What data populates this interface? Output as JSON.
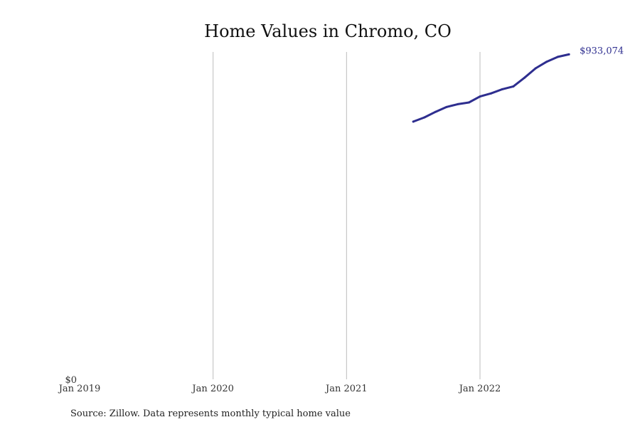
{
  "chart_data": {
    "type": "line",
    "title": "Home Values in Chromo, CO",
    "xlabel": "",
    "ylabel": "",
    "x_tick_labels": [
      "Jan 2019",
      "Jan 2020",
      "Jan 2021",
      "Jan 2022"
    ],
    "x_ticks": [
      "2019-01",
      "2020-01",
      "2021-01",
      "2022-01"
    ],
    "xlim": [
      "2019-01",
      "2022-12"
    ],
    "y_tick_labels": [
      "$0"
    ],
    "ylim": [
      0,
      940000
    ],
    "grid": "vertical",
    "line_color": "#2e2e8f",
    "grid_color": "#bdbdbd",
    "end_label": "$933,074",
    "series": [
      {
        "x": [
          "2021-07",
          "2021-08",
          "2021-09",
          "2021-10",
          "2021-11",
          "2021-12",
          "2022-01",
          "2022-02",
          "2022-03",
          "2022-04",
          "2022-05",
          "2022-06",
          "2022-07",
          "2022-08",
          "2022-09"
        ],
        "values": [
          740000,
          752000,
          768000,
          782000,
          790000,
          795000,
          812000,
          821000,
          833000,
          841000,
          866000,
          893000,
          912000,
          926000,
          933074
        ]
      }
    ]
  },
  "source_note": "Source: Zillow. Data represents monthly typical home value"
}
